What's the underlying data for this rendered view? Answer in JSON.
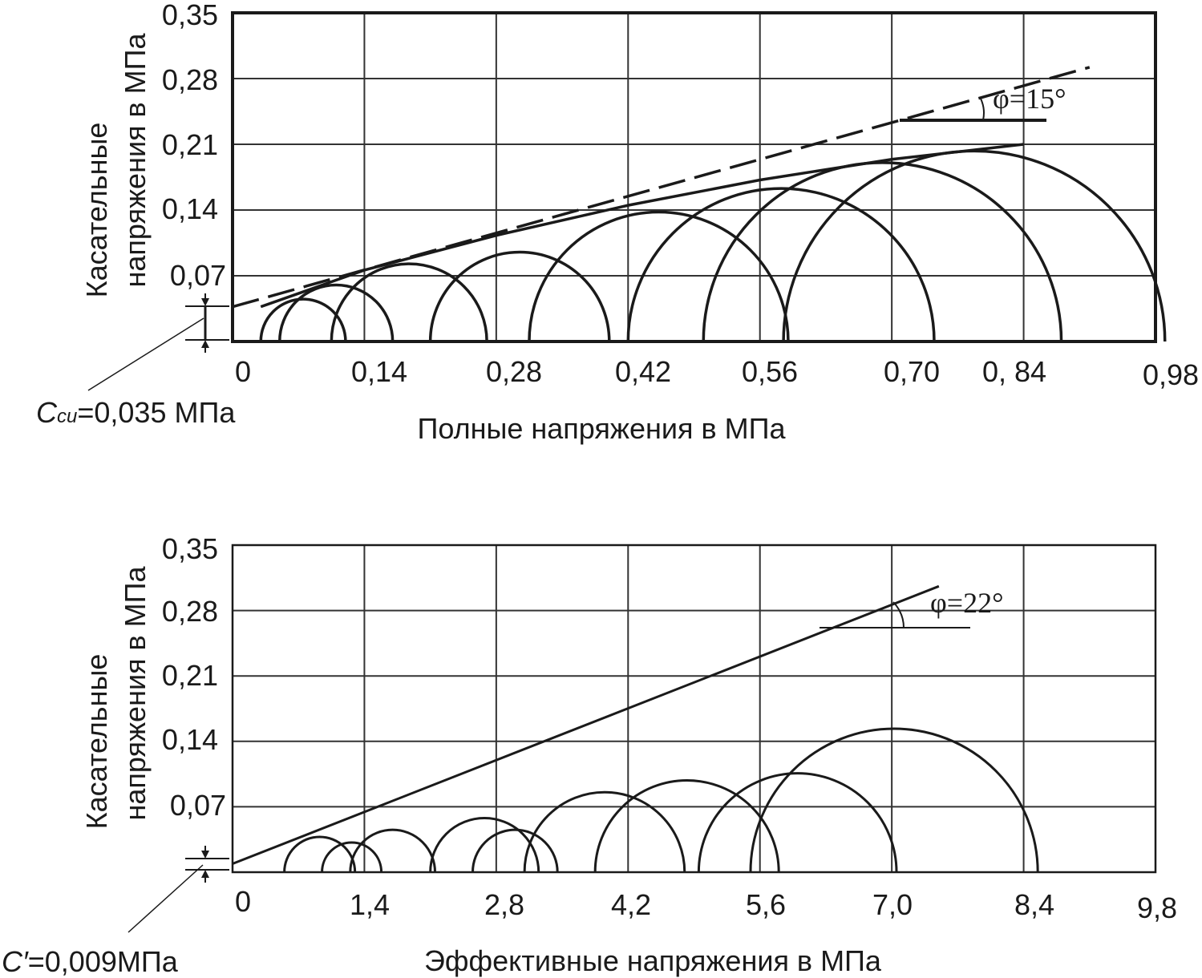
{
  "chart_data": [
    {
      "type": "scatter",
      "xlabel": "Полные напряжения в МПа",
      "ylabel_line1": "Касательные",
      "ylabel_line2": "напряжения в МПа",
      "x_ticks": [
        "0",
        "0,14",
        "0,28",
        "0,42",
        "0,56",
        "0,70",
        "0, 84",
        "0,98"
      ],
      "y_ticks": [
        "0,35",
        "0,28",
        "0,21",
        "0,14",
        "0,07"
      ],
      "xlim": [
        0,
        0.98
      ],
      "ylim": [
        0,
        0.35
      ],
      "cohesion_label": "=0,035 МПа",
      "cohesion_symbol": "C",
      "cohesion_subscript": "cu",
      "cohesion_value": 0.035,
      "angle_label": "φ=15°",
      "angle_deg": 15,
      "mohr_circles": [
        {
          "sigma3": 0.03,
          "sigma1": 0.12
        },
        {
          "sigma3": 0.05,
          "sigma1": 0.17
        },
        {
          "sigma3": 0.105,
          "sigma1": 0.27
        },
        {
          "sigma3": 0.21,
          "sigma1": 0.4
        },
        {
          "sigma3": 0.315,
          "sigma1": 0.59
        },
        {
          "sigma3": 0.42,
          "sigma1": 0.745
        },
        {
          "sigma3": 0.5,
          "sigma1": 0.88
        },
        {
          "sigma3": 0.585,
          "sigma1": 0.99
        }
      ],
      "envelope_curve": [
        [
          0.03,
          0.037
        ],
        [
          0.14,
          0.076
        ],
        [
          0.28,
          0.113
        ],
        [
          0.42,
          0.145
        ],
        [
          0.56,
          0.172
        ],
        [
          0.7,
          0.194
        ],
        [
          0.84,
          0.21
        ]
      ],
      "envelope_dashed": [
        [
          0,
          0.037
        ],
        [
          0.91,
          0.292
        ]
      ]
    },
    {
      "type": "scatter",
      "xlabel": "Эффективные напряжения в МПа",
      "ylabel_line1": "Касательные",
      "ylabel_line2": "напряжения в МПа",
      "x_ticks": [
        "0",
        "1,4",
        "2,8",
        "4,2",
        "5,6",
        "7,0",
        "8,4",
        "9,8"
      ],
      "y_ticks": [
        "0,35",
        "0,28",
        "0,21",
        "0,14",
        "0,07"
      ],
      "xlim": [
        0,
        9.8
      ],
      "ylim": [
        0,
        0.35
      ],
      "cohesion_label": "=0,009МПа",
      "cohesion_symbol": "C′",
      "cohesion_value": 0.009,
      "angle_label": "φ=22°",
      "angle_deg": 22,
      "mohr_circles": [
        {
          "sigma3": 0.55,
          "sigma1": 1.3
        },
        {
          "sigma3": 0.95,
          "sigma1": 1.58
        },
        {
          "sigma3": 1.25,
          "sigma1": 2.15
        },
        {
          "sigma3": 2.1,
          "sigma1": 3.25
        },
        {
          "sigma3": 2.55,
          "sigma1": 3.45
        },
        {
          "sigma3": 3.1,
          "sigma1": 4.8
        },
        {
          "sigma3": 3.85,
          "sigma1": 5.8
        },
        {
          "sigma3": 4.95,
          "sigma1": 7.05
        },
        {
          "sigma3": 5.5,
          "sigma1": 8.55
        }
      ],
      "envelope_line": [
        [
          0,
          0.009
        ],
        [
          7.5,
          0.306
        ]
      ]
    }
  ]
}
